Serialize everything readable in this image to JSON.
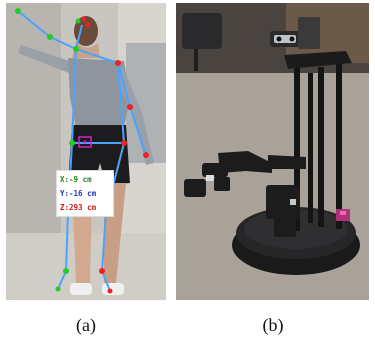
{
  "panels": [
    {
      "caption": "(a)",
      "readout": {
        "x": "X:-9 cm",
        "y": "Y:-16 cm",
        "z": "Z:293 cm"
      }
    },
    {
      "caption": "(b)"
    }
  ],
  "colors": {
    "skeleton_line": "#4aa3ff",
    "joint_left": "#22cc22",
    "joint_right": "#ee2222",
    "center_marker": "#cc22cc",
    "readout_x": "#1f8a1f",
    "readout_y": "#1a37c8",
    "readout_z": "#d11a1a"
  }
}
